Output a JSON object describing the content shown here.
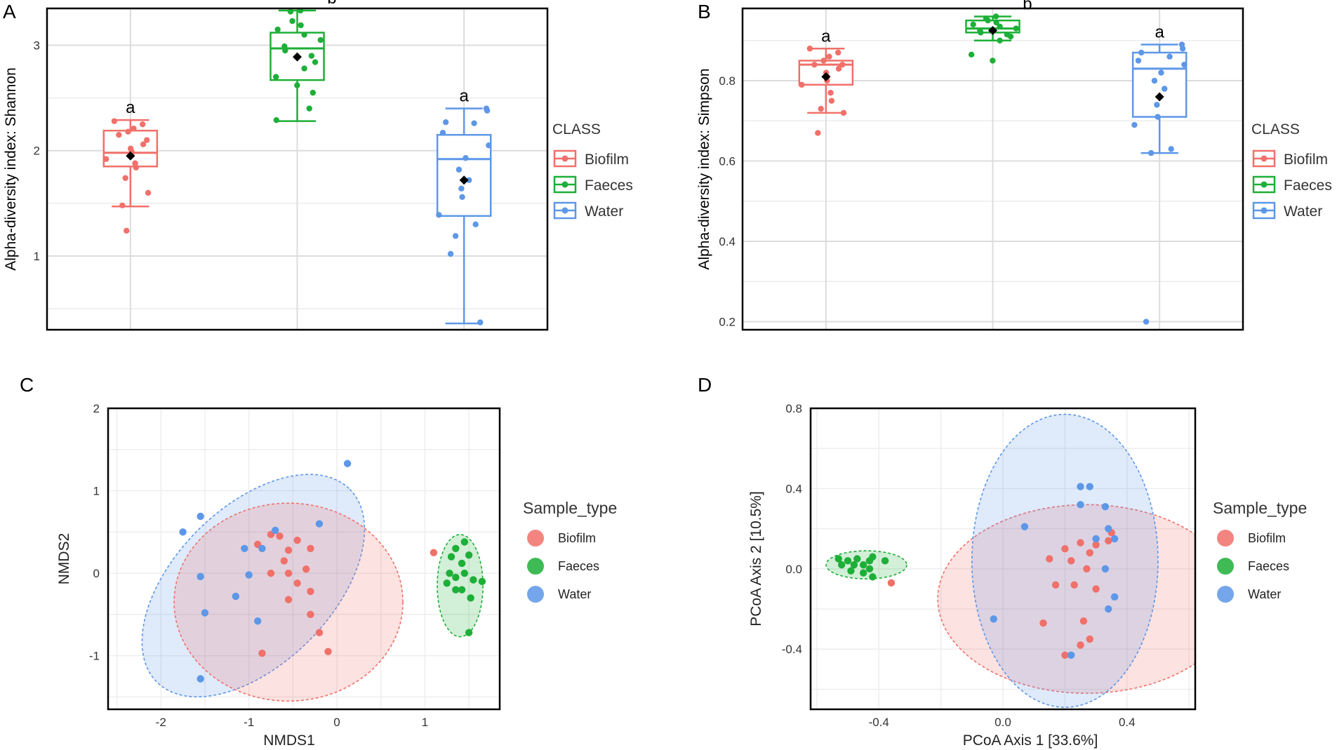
{
  "colors": {
    "Biofilm": "#F0706A",
    "Faeces": "#1DAF37",
    "Water": "#5D97E8",
    "mean": "#000000"
  },
  "chart_data": [
    {
      "panel": "A",
      "type": "box",
      "ylabel": "Alpha-diversity index: Shannon",
      "ylim": [
        0.3,
        3.35
      ],
      "yticks": [
        1,
        2,
        3
      ],
      "legend_title": "CLASS",
      "legend": [
        "Biofilm",
        "Faeces",
        "Water"
      ],
      "series": [
        {
          "name": "Biofilm",
          "q1": 1.85,
          "median": 1.98,
          "q3": 2.19,
          "whisker_low": 1.47,
          "whisker_high": 2.29,
          "mean": 1.95,
          "letter": "a",
          "points": [
            2.28,
            2.25,
            2.21,
            2.18,
            2.15,
            2.1,
            2.06,
            2.02,
            1.99,
            1.96,
            1.92,
            1.88,
            1.84,
            1.74,
            1.6,
            1.48,
            1.24
          ]
        },
        {
          "name": "Faeces",
          "q1": 2.67,
          "median": 2.97,
          "q3": 3.12,
          "whisker_low": 2.28,
          "whisker_high": 3.33,
          "mean": 2.89,
          "letter": "b",
          "points": [
            3.33,
            3.32,
            3.23,
            3.19,
            3.15,
            3.1,
            3.05,
            2.99,
            2.95,
            2.9,
            2.84,
            2.78,
            2.7,
            2.62,
            2.55,
            2.4,
            2.29
          ]
        },
        {
          "name": "Water",
          "q1": 1.38,
          "median": 1.92,
          "q3": 2.15,
          "whisker_low": 0.36,
          "whisker_high": 2.4,
          "mean": 1.72,
          "letter": "a",
          "points": [
            2.4,
            2.38,
            2.27,
            2.26,
            2.17,
            2.05,
            1.93,
            1.82,
            1.72,
            1.64,
            1.56,
            1.39,
            1.3,
            1.19,
            1.02,
            0.37
          ]
        }
      ]
    },
    {
      "panel": "B",
      "type": "box",
      "ylabel": "Alpha-diversity index: Simpson",
      "ylim": [
        0.18,
        0.98
      ],
      "yticks": [
        0.2,
        0.4,
        0.6,
        0.8
      ],
      "legend_title": "CLASS",
      "legend": [
        "Biofilm",
        "Faeces",
        "Water"
      ],
      "series": [
        {
          "name": "Biofilm",
          "q1": 0.79,
          "median": 0.84,
          "q3": 0.85,
          "whisker_low": 0.72,
          "whisker_high": 0.88,
          "mean": 0.81,
          "letter": "a",
          "points": [
            0.88,
            0.87,
            0.86,
            0.85,
            0.84,
            0.84,
            0.83,
            0.82,
            0.81,
            0.8,
            0.79,
            0.77,
            0.75,
            0.73,
            0.72,
            0.67
          ]
        },
        {
          "name": "Faeces",
          "q1": 0.92,
          "median": 0.93,
          "q3": 0.95,
          "whisker_low": 0.9,
          "whisker_high": 0.96,
          "mean": 0.925,
          "letter": "b",
          "points": [
            0.96,
            0.955,
            0.95,
            0.945,
            0.94,
            0.935,
            0.93,
            0.925,
            0.92,
            0.915,
            0.91,
            0.9,
            0.865,
            0.85
          ]
        },
        {
          "name": "Water",
          "q1": 0.71,
          "median": 0.83,
          "q3": 0.87,
          "whisker_low": 0.62,
          "whisker_high": 0.89,
          "mean": 0.76,
          "letter": "a",
          "points": [
            0.89,
            0.88,
            0.87,
            0.86,
            0.85,
            0.84,
            0.82,
            0.8,
            0.78,
            0.74,
            0.71,
            0.69,
            0.63,
            0.62,
            0.2
          ]
        }
      ]
    },
    {
      "panel": "C",
      "type": "scatter",
      "xlabel": "NMDS1",
      "ylabel": "NMDS2",
      "xlim": [
        -2.6,
        1.85
      ],
      "ylim": [
        -1.65,
        2.0
      ],
      "xticks": [
        -2,
        -1,
        0,
        1
      ],
      "yticks": [
        -1,
        0,
        1,
        2
      ],
      "legend_title": "Sample_type",
      "legend": [
        "Biofilm",
        "Faeces",
        "Water"
      ],
      "ellipses": [
        {
          "name": "Water",
          "cx": -0.95,
          "cy": -0.15,
          "rx": 1.55,
          "ry": 0.95,
          "angle_deg": 45
        },
        {
          "name": "Biofilm",
          "cx": -0.55,
          "cy": -0.35,
          "rx": 1.3,
          "ry": 1.2,
          "angle_deg": 0
        },
        {
          "name": "Faeces",
          "cx": 1.4,
          "cy": -0.15,
          "rx": 0.26,
          "ry": 0.62,
          "angle_deg": 0
        }
      ],
      "series": [
        {
          "name": "Biofilm",
          "points": [
            [
              -0.75,
              0.47
            ],
            [
              -0.65,
              0.45
            ],
            [
              -0.55,
              0.28
            ],
            [
              -0.45,
              0.4
            ],
            [
              -0.3,
              0.3
            ],
            [
              -0.9,
              0.35
            ],
            [
              -0.6,
              0.15
            ],
            [
              -0.35,
              0.05
            ],
            [
              -0.55,
              0.0
            ],
            [
              -0.75,
              0.0
            ],
            [
              -0.45,
              -0.12
            ],
            [
              -0.3,
              -0.22
            ],
            [
              -0.55,
              -0.32
            ],
            [
              -0.3,
              -0.5
            ],
            [
              -0.2,
              -0.72
            ],
            [
              -0.85,
              -0.97
            ],
            [
              -0.1,
              -0.95
            ],
            [
              1.1,
              0.25
            ]
          ]
        },
        {
          "name": "Faeces",
          "points": [
            [
              1.45,
              0.38
            ],
            [
              1.35,
              0.3
            ],
            [
              1.5,
              0.22
            ],
            [
              1.3,
              0.2
            ],
            [
              1.42,
              0.12
            ],
            [
              1.28,
              0.0
            ],
            [
              1.45,
              0.0
            ],
            [
              1.35,
              -0.05
            ],
            [
              1.55,
              -0.08
            ],
            [
              1.65,
              -0.1
            ],
            [
              1.25,
              -0.12
            ],
            [
              1.42,
              -0.2
            ],
            [
              1.35,
              -0.2
            ],
            [
              1.52,
              -0.3
            ],
            [
              1.5,
              -0.72
            ]
          ]
        },
        {
          "name": "Water",
          "points": [
            [
              0.12,
              1.33
            ],
            [
              -1.55,
              0.69
            ],
            [
              -1.75,
              0.5
            ],
            [
              -0.7,
              0.52
            ],
            [
              -0.2,
              0.6
            ],
            [
              -1.05,
              0.3
            ],
            [
              -0.85,
              0.3
            ],
            [
              -1.55,
              -0.04
            ],
            [
              -1.0,
              -0.02
            ],
            [
              -1.15,
              -0.28
            ],
            [
              -1.5,
              -0.48
            ],
            [
              -0.9,
              -0.58
            ],
            [
              -1.55,
              -1.28
            ]
          ]
        }
      ]
    },
    {
      "panel": "D",
      "type": "scatter",
      "xlabel": "PCoA Axis 1 [33.6%]",
      "ylabel": "PCoA Axis 2 [10.5%]",
      "xlim": [
        -0.62,
        0.62
      ],
      "ylim": [
        -0.7,
        0.8
      ],
      "xticks": [
        -0.4,
        0.0,
        0.4
      ],
      "xtick_labels": [
        "-0.4",
        "0.0",
        "0.4"
      ],
      "yticks": [
        -0.4,
        0.0,
        0.4,
        0.8
      ],
      "ytick_labels": [
        "-0.4",
        "0.0",
        "0.4",
        "0.8"
      ],
      "legend_title": "Sample_type",
      "legend": [
        "Biofilm",
        "Faeces",
        "Water"
      ],
      "ellipses": [
        {
          "name": "Biofilm",
          "cx": 0.27,
          "cy": -0.15,
          "rx": 0.48,
          "ry": 0.47,
          "angle_deg": 0
        },
        {
          "name": "Water",
          "cx": 0.2,
          "cy": 0.04,
          "rx": 0.3,
          "ry": 0.73,
          "angle_deg": 0
        },
        {
          "name": "Faeces",
          "cx": -0.44,
          "cy": 0.02,
          "rx": 0.13,
          "ry": 0.07,
          "angle_deg": 0
        }
      ],
      "series": [
        {
          "name": "Biofilm",
          "points": [
            [
              0.35,
              0.18
            ],
            [
              0.25,
              0.13
            ],
            [
              0.2,
              0.1
            ],
            [
              0.3,
              0.12
            ],
            [
              0.34,
              0.14
            ],
            [
              0.15,
              0.05
            ],
            [
              0.22,
              0.04
            ],
            [
              0.28,
              0.08
            ],
            [
              0.27,
              0.0
            ],
            [
              0.17,
              -0.08
            ],
            [
              0.23,
              -0.08
            ],
            [
              0.3,
              -0.1
            ],
            [
              0.13,
              -0.27
            ],
            [
              0.26,
              -0.26
            ],
            [
              0.28,
              -0.35
            ],
            [
              0.25,
              -0.38
            ],
            [
              0.2,
              -0.43
            ],
            [
              -0.36,
              -0.07
            ]
          ]
        },
        {
          "name": "Faeces",
          "points": [
            [
              -0.53,
              0.05
            ],
            [
              -0.5,
              0.04
            ],
            [
              -0.47,
              0.05
            ],
            [
              -0.43,
              0.04
            ],
            [
              -0.42,
              0.06
            ],
            [
              -0.38,
              0.04
            ],
            [
              -0.52,
              0.02
            ],
            [
              -0.48,
              0.02
            ],
            [
              -0.45,
              0.02
            ],
            [
              -0.43,
              0.0
            ],
            [
              -0.49,
              -0.01
            ],
            [
              -0.45,
              -0.02
            ],
            [
              -0.42,
              -0.04
            ]
          ]
        },
        {
          "name": "Water",
          "points": [
            [
              0.25,
              0.41
            ],
            [
              0.28,
              0.41
            ],
            [
              0.25,
              0.32
            ],
            [
              0.33,
              0.31
            ],
            [
              0.07,
              0.21
            ],
            [
              0.34,
              0.2
            ],
            [
              0.3,
              0.15
            ],
            [
              0.36,
              0.15
            ],
            [
              0.33,
              0.0
            ],
            [
              0.36,
              -0.14
            ],
            [
              0.34,
              -0.2
            ],
            [
              -0.03,
              -0.25
            ],
            [
              0.22,
              -0.43
            ]
          ]
        }
      ]
    }
  ]
}
